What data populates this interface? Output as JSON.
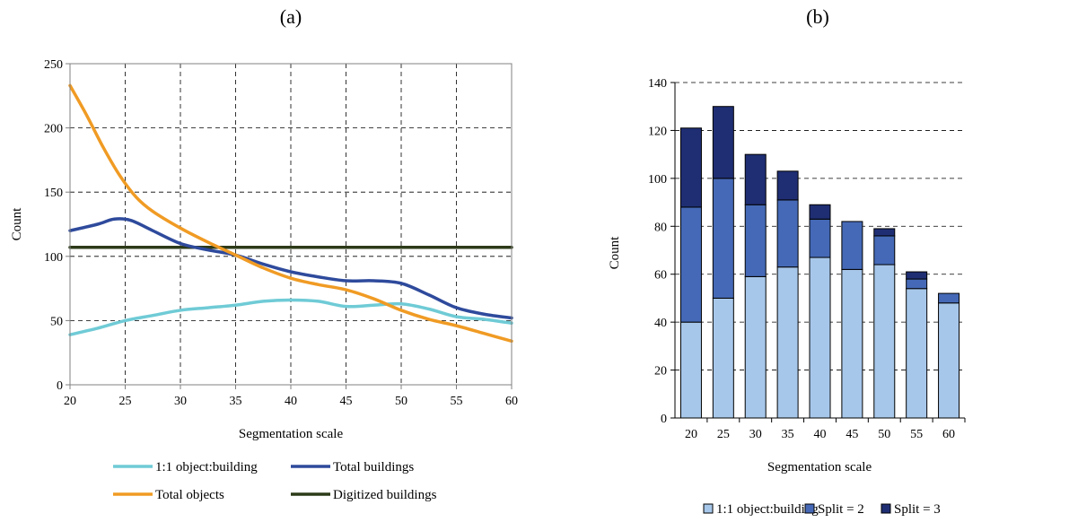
{
  "chart_data": [
    {
      "type": "line",
      "panel_label": "(a)",
      "xlabel": "Segmentation scale",
      "ylabel": "Count",
      "xlim": [
        20,
        60
      ],
      "ylim": [
        0,
        250
      ],
      "xticks": [
        "20",
        "25",
        "30",
        "35",
        "40",
        "45",
        "50",
        "55",
        "60"
      ],
      "yticks": [
        "0",
        "50",
        "100",
        "150",
        "200",
        "250"
      ],
      "grid": true,
      "legend_position": "bottom",
      "series": [
        {
          "name": "1:1 object:building",
          "color": "#6fcbd6",
          "x": [
            20,
            22.5,
            25,
            27.5,
            30,
            32.5,
            35,
            37.5,
            40,
            42.5,
            45,
            47.5,
            50,
            52.5,
            55,
            57.5,
            60
          ],
          "y": [
            39,
            44,
            50,
            54,
            58,
            60,
            62,
            65,
            66,
            65,
            61,
            62,
            63,
            59,
            53,
            51,
            48
          ]
        },
        {
          "name": "Total buildings",
          "color": "#2e4a9c",
          "x": [
            20,
            22.5,
            24,
            25.5,
            27.5,
            30,
            32.5,
            35,
            37.5,
            40,
            42.5,
            45,
            47.5,
            50,
            52.5,
            55,
            57.5,
            60
          ],
          "y": [
            120,
            125,
            129,
            128,
            120,
            110,
            105,
            101,
            94,
            88,
            84,
            81,
            81,
            79,
            70,
            60,
            55,
            52
          ]
        },
        {
          "name": "Total objects",
          "color": "#f09b24",
          "x": [
            20,
            21.5,
            23,
            24.5,
            26,
            27.5,
            30,
            32.5,
            35,
            37.5,
            40,
            42.5,
            45,
            47.5,
            50,
            52.5,
            55,
            57.5,
            60
          ],
          "y": [
            233,
            210,
            185,
            163,
            146,
            135,
            122,
            111,
            101,
            91,
            83,
            78,
            74,
            67,
            58,
            51,
            46,
            40,
            34
          ]
        },
        {
          "name": "Digitized buildings",
          "color": "#2c3a18",
          "x": [
            20,
            60
          ],
          "y": [
            107,
            107
          ]
        }
      ]
    },
    {
      "type": "bar",
      "stacked": true,
      "panel_label": "(b)",
      "xlabel": "Segmentation scale",
      "ylabel": "Count",
      "ylim": [
        0,
        140
      ],
      "yticks": [
        "0",
        "20",
        "40",
        "60",
        "80",
        "100",
        "120",
        "140"
      ],
      "categories": [
        "20",
        "25",
        "30",
        "35",
        "40",
        "45",
        "50",
        "55",
        "60"
      ],
      "grid": true,
      "legend_position": "bottom",
      "series": [
        {
          "name": "1:1 object:building",
          "color": "#a7c7ea",
          "values": [
            40,
            50,
            59,
            63,
            67,
            62,
            64,
            54,
            48
          ]
        },
        {
          "name": "Split = 2",
          "color": "#4569b6",
          "values": [
            48,
            50,
            30,
            28,
            16,
            20,
            12,
            4,
            4
          ]
        },
        {
          "name": "Split = 3",
          "color": "#1f2e73",
          "values": [
            33,
            30,
            21,
            12,
            6,
            0,
            3,
            3,
            0
          ]
        }
      ]
    }
  ]
}
